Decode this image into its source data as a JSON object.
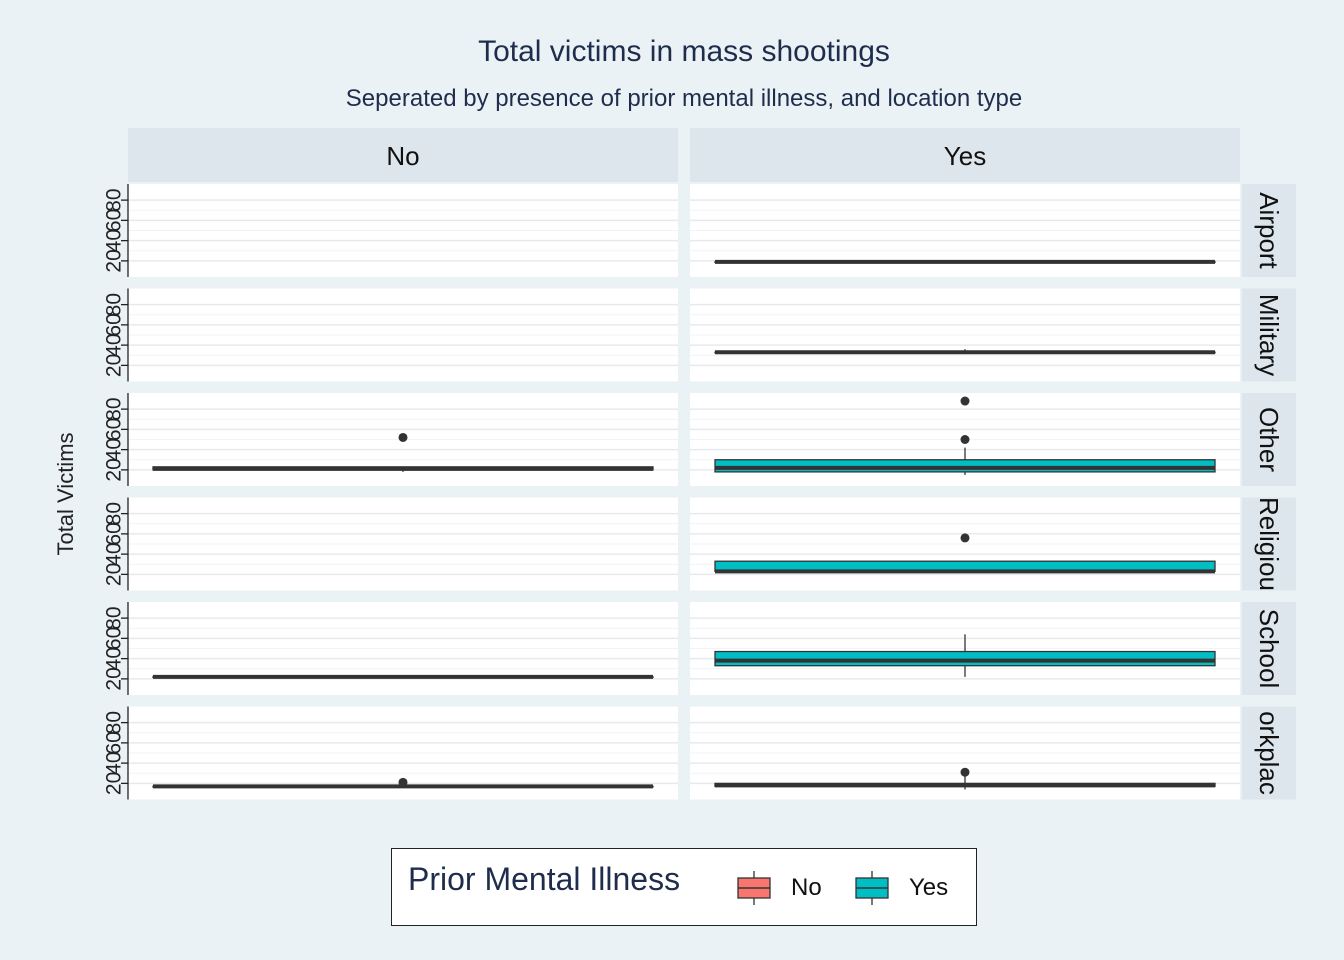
{
  "chart_data": {
    "type": "box",
    "title": "Total victims in mass shootings",
    "subtitle": "Seperated by presence of prior mental illness, and location type",
    "ylabel": "Total Victims",
    "xlabel": "",
    "yticks": [
      "20",
      "40",
      "60",
      "80"
    ],
    "ylim": [
      10,
      90
    ],
    "grid": true,
    "legend_position": "bottom",
    "columns": [
      "No",
      "Yes"
    ],
    "rows": [
      "Airport",
      "Military",
      "Other",
      "Religious",
      "School",
      "Workplace"
    ],
    "row_strip_labels": [
      "Airport",
      "Military",
      "Other",
      "Religiou",
      "School",
      "orkplac"
    ],
    "legend": {
      "title": "Prior Mental Illness",
      "items": [
        {
          "name": "No",
          "color": "#f8766d"
        },
        {
          "name": "Yes",
          "color": "#00bfc4"
        }
      ]
    },
    "boxes": [
      {
        "row": "Airport",
        "group": "Yes",
        "q1": 19,
        "median": 19,
        "q3": 19,
        "whisker_low": 19,
        "whisker_high": 19,
        "outliers": []
      },
      {
        "row": "Military",
        "group": "Yes",
        "q1": 33,
        "median": 33,
        "q3": 33,
        "whisker_low": 33,
        "whisker_high": 36,
        "outliers": []
      },
      {
        "row": "Other",
        "group": "No",
        "q1": 20,
        "median": 21,
        "q3": 23,
        "whisker_low": 18,
        "whisker_high": 23,
        "outliers": [
          52
        ]
      },
      {
        "row": "Other",
        "group": "Yes",
        "q1": 18,
        "median": 22,
        "q3": 30,
        "whisker_low": 15,
        "whisker_high": 42,
        "outliers": [
          50,
          88
        ]
      },
      {
        "row": "Religious",
        "group": "Yes",
        "q1": 23,
        "median": 23,
        "q3": 33,
        "whisker_low": 23,
        "whisker_high": 33,
        "outliers": [
          56
        ]
      },
      {
        "row": "School",
        "group": "No",
        "q1": 22,
        "median": 22,
        "q3": 22,
        "whisker_low": 22,
        "whisker_high": 22,
        "outliers": []
      },
      {
        "row": "School",
        "group": "Yes",
        "q1": 33,
        "median": 38,
        "q3": 47,
        "whisker_low": 22,
        "whisker_high": 64,
        "outliers": []
      },
      {
        "row": "Workplace",
        "group": "No",
        "q1": 17,
        "median": 17,
        "q3": 17,
        "whisker_low": 17,
        "whisker_high": 17,
        "outliers": [
          21
        ]
      },
      {
        "row": "Workplace",
        "group": "Yes",
        "q1": 17,
        "median": 18,
        "q3": 20,
        "whisker_low": 14,
        "whisker_high": 27,
        "outliers": [
          31
        ]
      }
    ]
  }
}
